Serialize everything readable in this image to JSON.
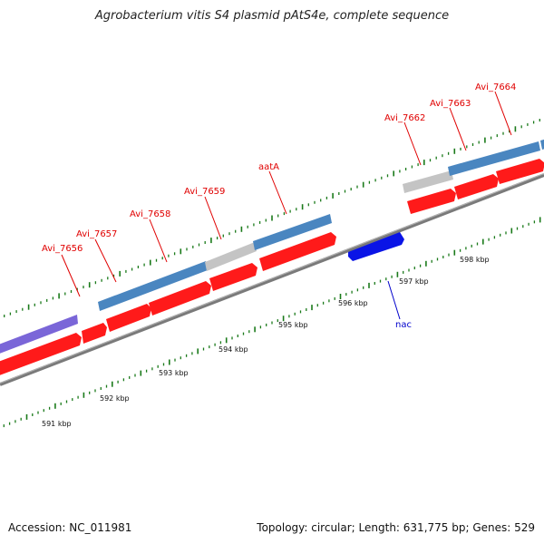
{
  "title": "Agrobacterium vitis S4 plasmid pAtS4e, complete sequence",
  "accession_text": "Accession: NC_011981",
  "summary_text": "Topology: circular; Length: 631,775 bp; Genes: 529",
  "axis_ticks": [
    {
      "label": "591 kbp",
      "kbp": 591
    },
    {
      "label": "592 kbp",
      "kbp": 592
    },
    {
      "label": "593 kbp",
      "kbp": 593
    },
    {
      "label": "594 kbp",
      "kbp": 594
    },
    {
      "label": "595 kbp",
      "kbp": 595
    },
    {
      "label": "596 kbp",
      "kbp": 596
    },
    {
      "label": "597 kbp",
      "kbp": 597
    },
    {
      "label": "598 kbp",
      "kbp": 598
    }
  ],
  "gene_labels": [
    {
      "name": "Avi_7656",
      "color": "#e00000"
    },
    {
      "name": "Avi_7657",
      "color": "#e00000"
    },
    {
      "name": "Avi_7658",
      "color": "#e00000"
    },
    {
      "name": "Avi_7659",
      "color": "#e00000"
    },
    {
      "name": "aatA",
      "color": "#e00000"
    },
    {
      "name": "Avi_7662",
      "color": "#e00000"
    },
    {
      "name": "Avi_7663",
      "color": "#e00000"
    },
    {
      "name": "Avi_7664",
      "color": "#e00000"
    },
    {
      "name": "nac",
      "color": "#0000cc"
    }
  ],
  "colors": {
    "cds": "#ff1a1a",
    "blue_feature": "#4a86c0",
    "grey_feature": "#c0c0c0",
    "purple_feature": "#7a66d8",
    "reverse_gene": "#0a14e6",
    "backbone": "#777777",
    "tick": "#1a7a1a"
  }
}
